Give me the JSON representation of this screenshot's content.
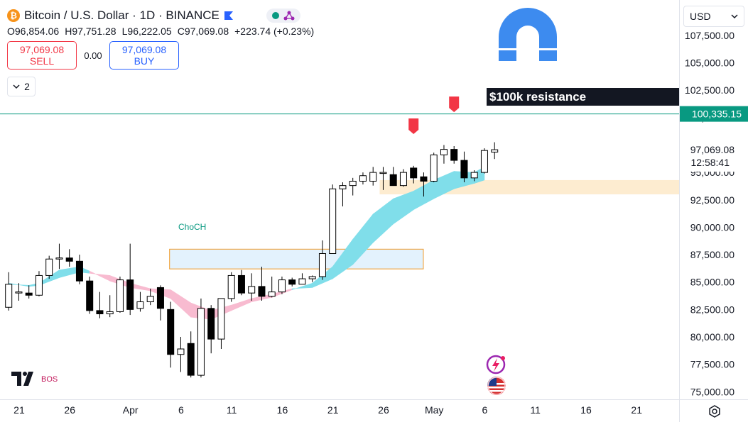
{
  "header": {
    "symbol_title": "Bitcoin / U.S. Dollar · 1D · BINANCE",
    "btc_glyph": "₿",
    "ohlc": {
      "open_label": "O",
      "open": "96,854.06",
      "high_label": "H",
      "high": "97,751.28",
      "low_label": "L",
      "low": "96,222.05",
      "close_label": "C",
      "close": "97,069.08",
      "change": "+223.74 (+0.23%)"
    }
  },
  "trade": {
    "sell_price": "97,069.08",
    "sell_label": "SELL",
    "spread": "0.00",
    "buy_price": "97,069.08",
    "buy_label": "BUY"
  },
  "indicators_count": "2",
  "currency": "USD",
  "price_label": {
    "price": "97,069.08",
    "countdown": "12:58:41"
  },
  "resistance_price_label": "100,335.15",
  "annotations": {
    "resistance": "$100k resistance",
    "choch": "ChoCH",
    "bos": "BOS"
  },
  "icons": [
    "bitcoin-logo",
    "flag-icon",
    "share-icon",
    "magnet-icon",
    "down-arrow-marker",
    "news-bolt-icon",
    "us-flag-icon",
    "settings-icon",
    "tradingview-logo",
    "chevron-down-icon"
  ],
  "colors": {
    "bull_candle": "#ffffff",
    "bear_candle": "#000000",
    "wick": "#000000",
    "resistance_line": "#089981",
    "ribbon_bull": "#80deea",
    "ribbon_bear": "#f8bbd0",
    "marker": "#f23645",
    "choch_text": "#089981",
    "bos_text": "#c2185b",
    "demand_zone": "#fde9c8",
    "order_block_fill": "#e3f2fd",
    "order_block_border": "#ef9a28"
  },
  "chart_data": {
    "type": "candlestick",
    "symbol": "BTCUSD",
    "interval": "1D",
    "exchange": "BINANCE",
    "ylim": [
      74000,
      110000
    ],
    "y_ticks": [
      75000,
      77500,
      80000,
      82500,
      85000,
      87500,
      90000,
      92500,
      95000,
      97500,
      100000,
      102500,
      105000,
      107500
    ],
    "y_tick_labels": [
      "75,000.00",
      "77,500.00",
      "80,000.00",
      "82,500.00",
      "85,000.00",
      "87,500.00",
      "90,000.00",
      "92,500.00",
      "95,000.00",
      "97,500.00",
      "100,000.00",
      "102,500.00",
      "105,000.00",
      "107,500.00"
    ],
    "x_tick_labels": [
      {
        "label": "21",
        "index": 1
      },
      {
        "label": "26",
        "index": 6
      },
      {
        "label": "Apr",
        "index": 12
      },
      {
        "label": "6",
        "index": 17
      },
      {
        "label": "11",
        "index": 22
      },
      {
        "label": "16",
        "index": 27
      },
      {
        "label": "21",
        "index": 32
      },
      {
        "label": "26",
        "index": 37
      },
      {
        "label": "May",
        "index": 42
      },
      {
        "label": "6",
        "index": 47
      },
      {
        "label": "11",
        "index": 52
      },
      {
        "label": "16",
        "index": 57
      },
      {
        "label": "21",
        "index": 62
      }
    ],
    "candles": [
      {
        "o": 82700,
        "h": 85900,
        "l": 82400,
        "c": 84800
      },
      {
        "o": 84100,
        "h": 84900,
        "l": 83300,
        "c": 84100
      },
      {
        "o": 84000,
        "h": 84700,
        "l": 83500,
        "c": 83800
      },
      {
        "o": 83800,
        "h": 86000,
        "l": 83700,
        "c": 85600
      },
      {
        "o": 85600,
        "h": 87400,
        "l": 85300,
        "c": 87100
      },
      {
        "o": 87100,
        "h": 88500,
        "l": 86200,
        "c": 87200
      },
      {
        "o": 87200,
        "h": 88000,
        "l": 86400,
        "c": 86900
      },
      {
        "o": 86900,
        "h": 87500,
        "l": 84800,
        "c": 85100
      },
      {
        "o": 85100,
        "h": 85500,
        "l": 82100,
        "c": 82400
      },
      {
        "o": 82400,
        "h": 84100,
        "l": 81700,
        "c": 82100
      },
      {
        "o": 82100,
        "h": 83800,
        "l": 81800,
        "c": 82300
      },
      {
        "o": 82300,
        "h": 85500,
        "l": 82200,
        "c": 85200
      },
      {
        "o": 85200,
        "h": 88500,
        "l": 82000,
        "c": 82500
      },
      {
        "o": 82600,
        "h": 84100,
        "l": 82300,
        "c": 83200
      },
      {
        "o": 83200,
        "h": 84400,
        "l": 82900,
        "c": 83700
      },
      {
        "o": 84500,
        "h": 84700,
        "l": 81500,
        "c": 82600
      },
      {
        "o": 82500,
        "h": 83200,
        "l": 77200,
        "c": 78400
      },
      {
        "o": 78400,
        "h": 80000,
        "l": 76800,
        "c": 78900
      },
      {
        "o": 79400,
        "h": 80500,
        "l": 76300,
        "c": 76500
      },
      {
        "o": 76500,
        "h": 83500,
        "l": 76300,
        "c": 82600
      },
      {
        "o": 82600,
        "h": 82900,
        "l": 78500,
        "c": 79800
      },
      {
        "o": 79800,
        "h": 83400,
        "l": 78900,
        "c": 83500
      },
      {
        "o": 83500,
        "h": 85900,
        "l": 83200,
        "c": 85600
      },
      {
        "o": 85600,
        "h": 86100,
        "l": 83800,
        "c": 84000
      },
      {
        "o": 84000,
        "h": 85800,
        "l": 83300,
        "c": 84600
      },
      {
        "o": 84600,
        "h": 86400,
        "l": 83300,
        "c": 83700
      },
      {
        "o": 83700,
        "h": 85500,
        "l": 83600,
        "c": 84100
      },
      {
        "o": 84100,
        "h": 85500,
        "l": 83900,
        "c": 85200
      },
      {
        "o": 85200,
        "h": 85400,
        "l": 84600,
        "c": 84800
      },
      {
        "o": 84800,
        "h": 85800,
        "l": 84800,
        "c": 85300
      },
      {
        "o": 85300,
        "h": 85600,
        "l": 85000,
        "c": 85500
      },
      {
        "o": 85500,
        "h": 88800,
        "l": 85200,
        "c": 87600
      },
      {
        "o": 87600,
        "h": 93900,
        "l": 87600,
        "c": 93500
      },
      {
        "o": 93500,
        "h": 94100,
        "l": 91900,
        "c": 93800
      },
      {
        "o": 93800,
        "h": 94500,
        "l": 92900,
        "c": 94200
      },
      {
        "o": 94200,
        "h": 95000,
        "l": 93900,
        "c": 94700
      },
      {
        "o": 94200,
        "h": 95500,
        "l": 93800,
        "c": 95000
      },
      {
        "o": 95000,
        "h": 95500,
        "l": 93400,
        "c": 95000
      },
      {
        "o": 94800,
        "h": 95500,
        "l": 93800,
        "c": 93800
      },
      {
        "o": 93800,
        "h": 95300,
        "l": 93700,
        "c": 95000
      },
      {
        "o": 95400,
        "h": 95600,
        "l": 94000,
        "c": 94500
      },
      {
        "o": 94600,
        "h": 95000,
        "l": 92800,
        "c": 94200
      },
      {
        "o": 94200,
        "h": 96800,
        "l": 94100,
        "c": 96600
      },
      {
        "o": 96600,
        "h": 97500,
        "l": 95800,
        "c": 97100
      },
      {
        "o": 97100,
        "h": 97400,
        "l": 95800,
        "c": 96100
      },
      {
        "o": 96100,
        "h": 96900,
        "l": 94100,
        "c": 94500
      },
      {
        "o": 94500,
        "h": 95200,
        "l": 94200,
        "c": 95000
      },
      {
        "o": 95000,
        "h": 97200,
        "l": 94900,
        "c": 97000
      },
      {
        "o": 96854,
        "h": 97751,
        "l": 96222,
        "c": 97069
      }
    ],
    "resistance_level": 100335.15,
    "demand_zone": {
      "x_start_index": 37,
      "x_end_index": 67,
      "y_low": 93000,
      "y_high": 94300
    },
    "order_block": {
      "x_start_index": 16,
      "x_end_index": 41,
      "y_low": 86200,
      "y_high": 88000
    },
    "resistance_box": {
      "x_start_index": 47,
      "x_end_index": 66,
      "y_bottom": 101400,
      "label": "$100k resistance"
    },
    "sell_markers": [
      {
        "index": 40,
        "price": 98500
      },
      {
        "index": 44,
        "price": 100500
      }
    ],
    "choch": {
      "index": 18,
      "price": 90000
    },
    "ribbon": [
      {
        "i": 0,
        "fast": 84800,
        "slow": 84900
      },
      {
        "i": 2,
        "fast": 84700,
        "slow": 84600
      },
      {
        "i": 3,
        "fast": 84900,
        "slow": 84700
      },
      {
        "i": 5,
        "fast": 86100,
        "slow": 85400
      },
      {
        "i": 7,
        "fast": 86400,
        "slow": 85900
      },
      {
        "i": 8,
        "fast": 86000,
        "slow": 85800
      },
      {
        "i": 10,
        "fast": 85100,
        "slow": 85600
      },
      {
        "i": 12,
        "fast": 84500,
        "slow": 84900
      },
      {
        "i": 14,
        "fast": 84200,
        "slow": 84400
      },
      {
        "i": 16,
        "fast": 83500,
        "slow": 84300
      },
      {
        "i": 18,
        "fast": 81800,
        "slow": 83100
      },
      {
        "i": 20,
        "fast": 81600,
        "slow": 82400
      },
      {
        "i": 22,
        "fast": 82400,
        "slow": 82900
      },
      {
        "i": 24,
        "fast": 83200,
        "slow": 83500
      },
      {
        "i": 26,
        "fast": 83600,
        "slow": 83900
      },
      {
        "i": 28,
        "fast": 84300,
        "slow": 84400
      },
      {
        "i": 30,
        "fast": 84900,
        "slow": 84500
      },
      {
        "i": 32,
        "fast": 86400,
        "slow": 85300
      },
      {
        "i": 34,
        "fast": 88900,
        "slow": 86600
      },
      {
        "i": 36,
        "fast": 91200,
        "slow": 88600
      },
      {
        "i": 38,
        "fast": 92600,
        "slow": 90300
      },
      {
        "i": 40,
        "fast": 93300,
        "slow": 91600
      },
      {
        "i": 42,
        "fast": 94300,
        "slow": 92600
      },
      {
        "i": 44,
        "fast": 95100,
        "slow": 93500
      },
      {
        "i": 46,
        "fast": 95000,
        "slow": 94000
      },
      {
        "i": 47,
        "fast": 95500,
        "slow": 94300
      }
    ]
  }
}
